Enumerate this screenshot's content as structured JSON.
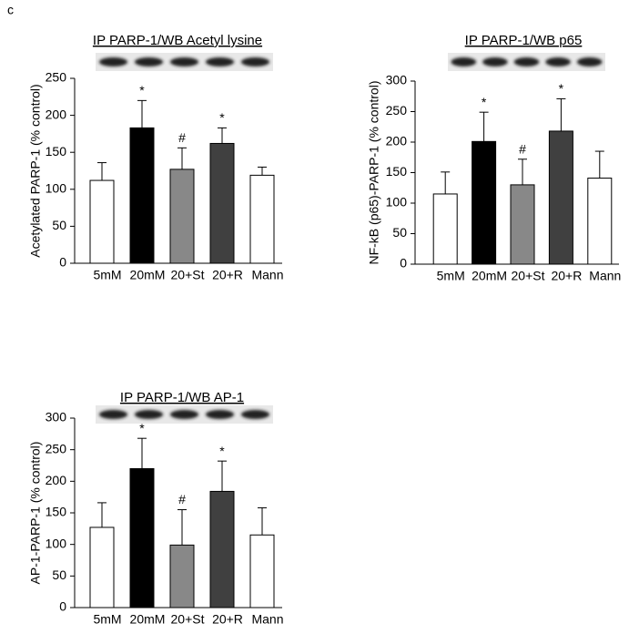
{
  "panel_label": "c",
  "chart_data": [
    {
      "type": "bar",
      "title": "IP PARP-1/WB Acetyl lysine",
      "y_label": "Acetylated PARP-1 (% control)",
      "categories": [
        "5mM",
        "20mM",
        "20+St",
        "20+R",
        "Mann"
      ],
      "values": [
        112,
        183,
        127,
        162,
        119
      ],
      "errors": [
        24,
        37,
        29,
        21,
        11
      ],
      "markers": [
        null,
        "*",
        "#",
        "*",
        null
      ],
      "colors": [
        "#ffffff",
        "#000000",
        "#888888",
        "#404040",
        "#ffffff"
      ],
      "ylim": [
        0,
        250
      ],
      "yticks": [
        0,
        50,
        100,
        150,
        200,
        250
      ]
    },
    {
      "type": "bar",
      "title": "IP PARP-1/WB p65",
      "y_label": "NF-kB (p65)-PARP-1 (% control)",
      "categories": [
        "5mM",
        "20mM",
        "20+St",
        "20+R",
        "Mann"
      ],
      "values": [
        115,
        201,
        130,
        218,
        141
      ],
      "errors": [
        36,
        48,
        42,
        53,
        44
      ],
      "markers": [
        null,
        "*",
        "#",
        "*",
        null
      ],
      "colors": [
        "#ffffff",
        "#000000",
        "#888888",
        "#404040",
        "#ffffff"
      ],
      "ylim": [
        0,
        300
      ],
      "yticks": [
        0,
        50,
        100,
        150,
        200,
        250,
        300
      ]
    },
    {
      "type": "bar",
      "title": "IP PARP-1/WB AP-1",
      "y_label": "AP-1-PARP-1 (% control)",
      "categories": [
        "5mM",
        "20mM",
        "20+St",
        "20+R",
        "Mann"
      ],
      "values": [
        127,
        220,
        99,
        184,
        115
      ],
      "errors": [
        39,
        48,
        56,
        48,
        43
      ],
      "markers": [
        null,
        "*",
        "#",
        "*",
        null
      ],
      "colors": [
        "#ffffff",
        "#000000",
        "#888888",
        "#404040",
        "#ffffff"
      ],
      "ylim": [
        0,
        300
      ],
      "yticks": [
        0,
        50,
        100,
        150,
        200,
        250,
        300
      ]
    }
  ]
}
